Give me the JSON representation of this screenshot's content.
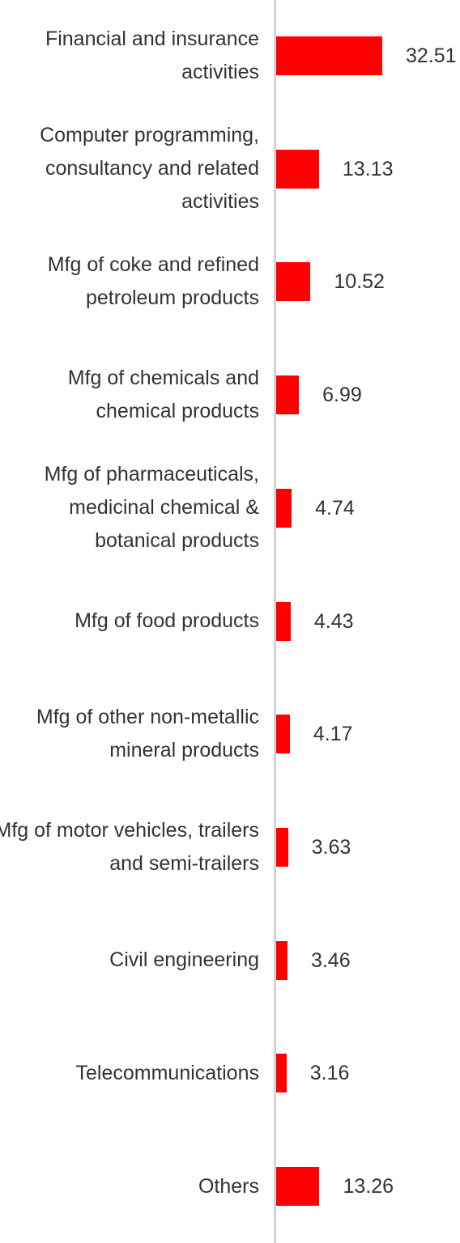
{
  "chart_data": {
    "type": "bar",
    "orientation": "horizontal",
    "color": "#ff0000",
    "categories": [
      "Financial and insurance activities",
      "Computer programming, consultancy and related activities",
      "Mfg of coke and refined petroleum products",
      "Mfg of chemicals and chemical products",
      "Mfg of pharmaceuticals, medicinal chemical & botanical products",
      "Mfg of food products",
      "Mfg of other non-metallic mineral products",
      "Mfg of motor vehicles, trailers and semi-trailers",
      "Civil engineering",
      "Telecommunications",
      "Others"
    ],
    "values": [
      32.51,
      13.13,
      10.52,
      6.99,
      4.74,
      4.43,
      4.17,
      3.63,
      3.46,
      3.16,
      13.26
    ]
  }
}
